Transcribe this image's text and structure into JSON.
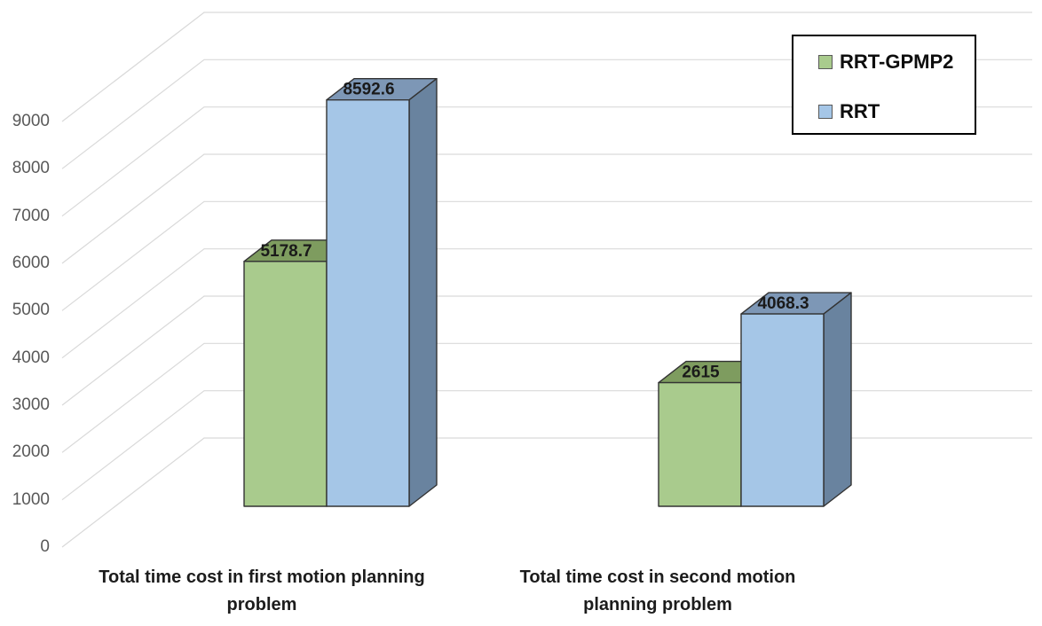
{
  "chart_data": {
    "type": "bar",
    "style": "3d-clustered-column",
    "title": "",
    "categories": [
      {
        "label": "Total time cost in first motion planning problem",
        "lines": [
          "Total time cost in first motion planning",
          "problem"
        ]
      },
      {
        "label": "Total time cost in second motion planning problem",
        "lines": [
          "Total time cost in second motion",
          "planning problem"
        ]
      }
    ],
    "series": [
      {
        "name": "RRT-GPMP2",
        "values": [
          5178.7,
          2615
        ],
        "value_labels": [
          "5178.7",
          "2615"
        ],
        "color_front": "#A9CB8D",
        "color_top": "#7E9C5F",
        "color_side": "#7E9C5F"
      },
      {
        "name": "RRT",
        "values": [
          8592.6,
          4068.3
        ],
        "value_labels": [
          "8592.6",
          "4068.3"
        ],
        "color_front": "#A5C6E7",
        "color_top": "#7D97B6",
        "color_side": "#69839F"
      }
    ],
    "y_axis": {
      "min": 0,
      "max": 9000,
      "tick_step": 1000,
      "ticks": [
        0,
        1000,
        2000,
        3000,
        4000,
        5000,
        6000,
        7000,
        8000,
        9000
      ],
      "grid": true
    },
    "legend": {
      "position": "top-right"
    },
    "colors": {
      "gridline": "#D9D9D9",
      "bar_outline": "#333333",
      "axis_label": "#595959",
      "data_label": "#1a1a1a",
      "category_label": "#1c1c1c"
    }
  }
}
